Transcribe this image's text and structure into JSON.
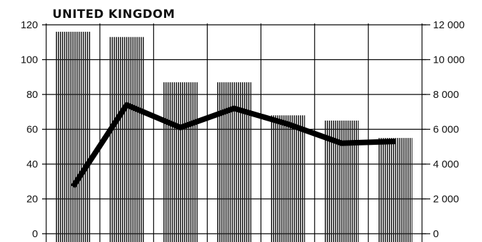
{
  "chart_data": {
    "type": "bar",
    "title": "UNITED KINGDOM",
    "categories": [
      "",
      "",
      "",
      "",
      "",
      "",
      ""
    ],
    "xlabel": "",
    "ylabel": "",
    "ylim": [
      0,
      120
    ],
    "y2lim": [
      0,
      12000
    ],
    "left_ticks": [
      "0",
      "20",
      "40",
      "60",
      "80",
      "100",
      "120"
    ],
    "right_ticks": [
      "0",
      "2 000",
      "4 000",
      "6 000",
      "8 000",
      "10 000",
      "12 000"
    ],
    "series": [
      {
        "type": "bar",
        "axis": "left",
        "values": [
          116,
          113,
          87,
          87,
          68,
          65,
          55
        ]
      },
      {
        "type": "line",
        "axis": "right",
        "values": [
          2700,
          7400,
          6100,
          7200,
          6300,
          5200,
          5300
        ]
      }
    ],
    "grid": true,
    "legend": "none",
    "colors": {
      "ink": "#000000",
      "bar_hatch": "#1a1a1a",
      "background": "#ffffff"
    }
  }
}
